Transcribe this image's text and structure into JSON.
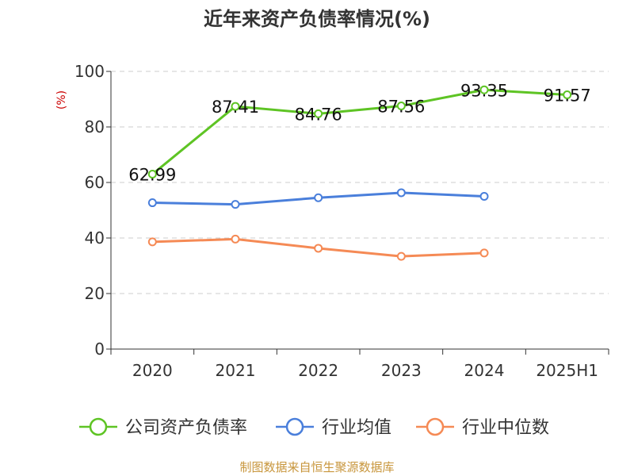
{
  "chart_data": {
    "type": "line",
    "title": "近年来资产负债率情况(%)",
    "ylabel": "(%)",
    "xlabel": "",
    "ylim": [
      0,
      100
    ],
    "yticks": [
      0,
      20,
      40,
      60,
      80,
      100
    ],
    "grid": true,
    "legend_position": "bottom",
    "categories": [
      "2020",
      "2021",
      "2022",
      "2023",
      "2024",
      "2025H1"
    ],
    "series": [
      {
        "name": "公司资产负债率",
        "color": "#5ec424",
        "values": [
          62.99,
          87.41,
          84.76,
          87.56,
          93.35,
          91.57
        ],
        "labels": [
          "62.99",
          "87.41",
          "84.76",
          "87.56",
          "93.35",
          "91.57"
        ]
      },
      {
        "name": "行业均值",
        "color": "#4a7fdb",
        "values": [
          52.7,
          52.1,
          54.5,
          56.3,
          55.0,
          null
        ]
      },
      {
        "name": "行业中位数",
        "color": "#f58a55",
        "values": [
          38.6,
          39.6,
          36.3,
          33.4,
          34.6,
          null
        ]
      }
    ],
    "source": "制图数据来自恒生聚源数据库"
  }
}
